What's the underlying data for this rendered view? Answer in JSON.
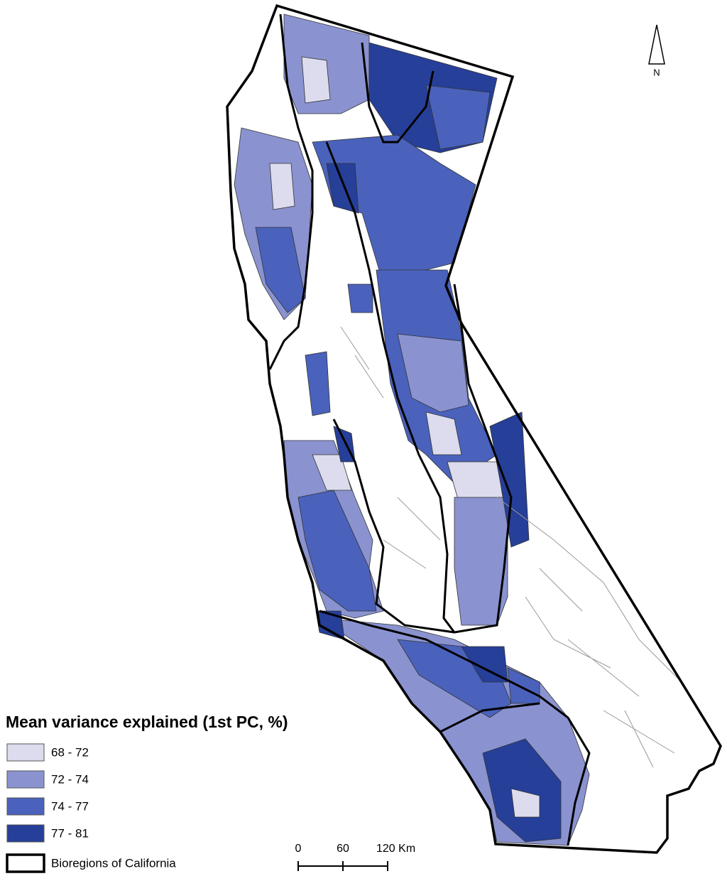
{
  "legend": {
    "title": "Mean variance explained (1st PC, %)",
    "items": [
      {
        "label": "68 - 72",
        "color": "#dcdcee"
      },
      {
        "label": "72 - 74",
        "color": "#8a93d0"
      },
      {
        "label": "74 - 77",
        "color": "#4a62bc"
      },
      {
        "label": "77 - 81",
        "color": "#263f98"
      }
    ],
    "boundary_label": "Bioregions of California"
  },
  "scale_bar": {
    "labels": [
      "0",
      "60",
      "120 Km"
    ]
  },
  "north_arrow": {
    "label": "N"
  }
}
